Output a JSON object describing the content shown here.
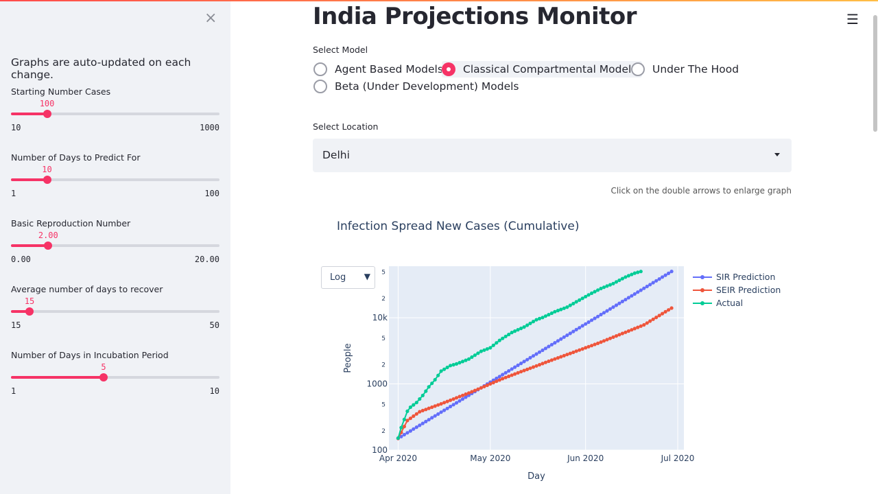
{
  "sidebar": {
    "close_label": "×",
    "note": "Graphs are auto-updated on each change.",
    "sliders": [
      {
        "label": "Starting Number Cases",
        "value": "100",
        "min": "10",
        "max": "1000",
        "fraction": 0.091
      },
      {
        "label": "Number of Days to Predict For",
        "value": "10",
        "min": "1",
        "max": "100",
        "fraction": 0.091
      },
      {
        "label": "Basic Reproduction Number",
        "value": "2.00",
        "min": "0.00",
        "max": "20.00",
        "fraction": 0.1
      },
      {
        "label": "Average number of days to recover",
        "value": "15",
        "min": "15",
        "max": "50",
        "fraction": 0.0
      },
      {
        "label": "Number of Days in Incubation Period",
        "value": "5",
        "min": "1",
        "max": "10",
        "fraction": 0.444
      }
    ]
  },
  "header": {
    "title": "India Projections Monitor",
    "menu_icon": "☰"
  },
  "model_select": {
    "label": "Select Model",
    "options": [
      "Agent Based Models",
      "Classical Compartmental Models",
      "Under The Hood",
      "Beta (Under Development) Models"
    ],
    "selected": "Classical Compartmental Models"
  },
  "location_select": {
    "label": "Select Location",
    "value": "Delhi"
  },
  "hint": "Click on the double arrows to enlarge graph",
  "chart": {
    "title": "Infection Spread New Cases (Cumulative)",
    "scale_dropdown": "Log",
    "scale_arrow": "▼",
    "ylabel": "People",
    "xlabel": "Day",
    "x_ticks": [
      "Apr 2020",
      "May 2020",
      "Jun 2020",
      "Jul 2020"
    ],
    "y_ticks": [
      "100",
      "2",
      "5",
      "1000",
      "2",
      "5",
      "10k",
      "2",
      "5"
    ],
    "legend": [
      "SIR Prediction",
      "SEIR Prediction",
      "Actual"
    ]
  },
  "colors": {
    "accent": "#f63366",
    "sir": "#636efa",
    "seir": "#ef553b",
    "actual": "#00cc96",
    "plot_bg": "#e5ecf6"
  },
  "chart_data": {
    "type": "line",
    "title": "Infection Spread New Cases (Cumulative)",
    "xlabel": "Day",
    "ylabel": "People",
    "y_scale": "log",
    "ylim": [
      100,
      60000
    ],
    "x_range": [
      "2020-03-29",
      "2020-07-03"
    ],
    "series": [
      {
        "name": "SIR Prediction",
        "start": "2020-04-01",
        "end": "2020-06-29",
        "start_value": 150,
        "end_value": 50000
      },
      {
        "name": "SEIR Prediction",
        "points": [
          [
            "2020-04-01",
            150
          ],
          [
            "2020-04-04",
            280
          ],
          [
            "2020-04-08",
            380
          ],
          [
            "2020-04-15",
            500
          ],
          [
            "2020-04-25",
            760
          ],
          [
            "2020-05-05",
            1200
          ],
          [
            "2020-05-20",
            2200
          ],
          [
            "2020-06-05",
            4100
          ],
          [
            "2020-06-20",
            7800
          ],
          [
            "2020-06-29",
            14000
          ]
        ]
      },
      {
        "name": "Actual",
        "points": [
          [
            "2020-04-01",
            152
          ],
          [
            "2020-04-02",
            219
          ],
          [
            "2020-04-04",
            386
          ],
          [
            "2020-04-05",
            445
          ],
          [
            "2020-04-07",
            523
          ],
          [
            "2020-04-09",
            669
          ],
          [
            "2020-04-11",
            903
          ],
          [
            "2020-04-13",
            1154
          ],
          [
            "2020-04-15",
            1561
          ],
          [
            "2020-04-18",
            1893
          ],
          [
            "2020-04-20",
            2003
          ],
          [
            "2020-04-24",
            2376
          ],
          [
            "2020-04-28",
            3108
          ],
          [
            "2020-05-01",
            3515
          ],
          [
            "2020-05-04",
            4549
          ],
          [
            "2020-05-08",
            5980
          ],
          [
            "2020-05-12",
            7233
          ],
          [
            "2020-05-16",
            9333
          ],
          [
            "2020-05-18",
            10054
          ],
          [
            "2020-05-22",
            12319
          ],
          [
            "2020-05-26",
            14465
          ],
          [
            "2020-05-29",
            17386
          ],
          [
            "2020-06-02",
            22132
          ],
          [
            "2020-06-06",
            27654
          ],
          [
            "2020-06-10",
            32810
          ],
          [
            "2020-06-14",
            41182
          ],
          [
            "2020-06-17",
            47102
          ],
          [
            "2020-06-19",
            49979
          ]
        ]
      }
    ]
  }
}
